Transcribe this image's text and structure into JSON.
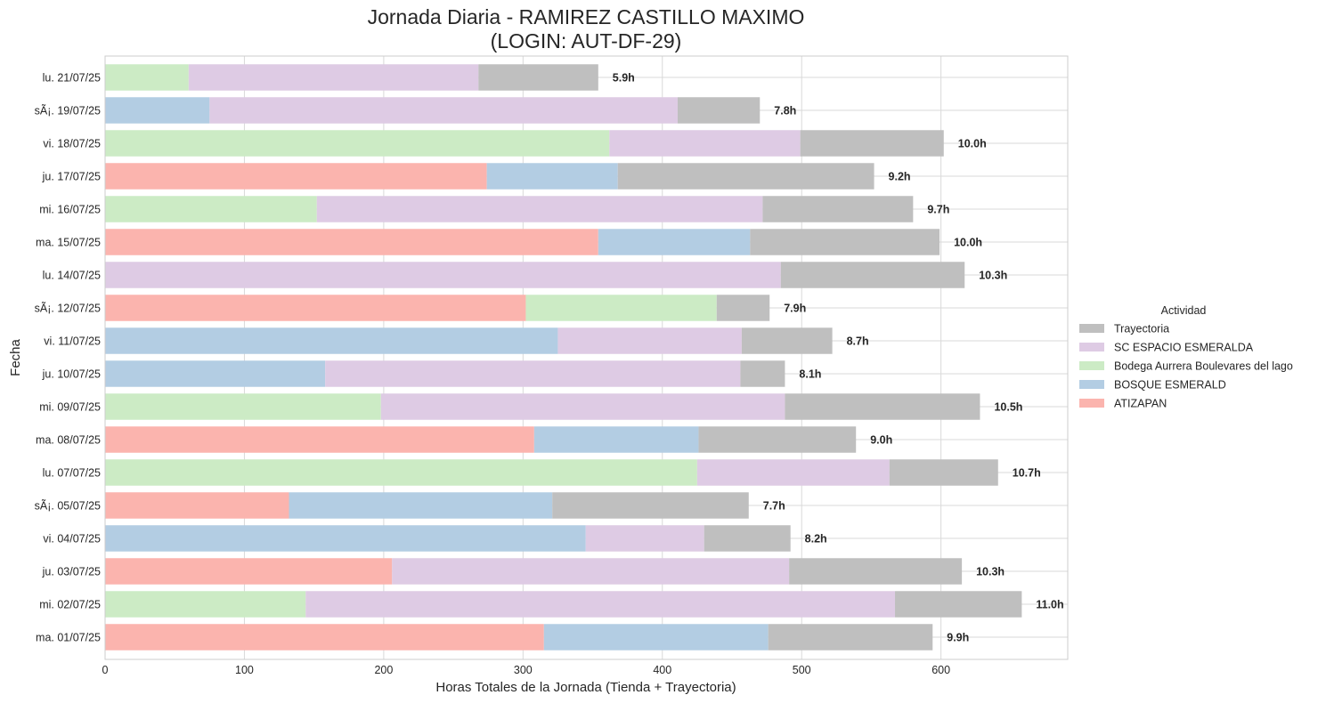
{
  "chart_data": {
    "type": "bar",
    "orientation": "horizontal",
    "stacked": true,
    "title": "Jornada Diaria - RAMIREZ CASTILLO MAXIMO",
    "subtitle": "(LOGIN: AUT-DF-29)",
    "xlabel": "Horas Totales de la Jornada (Tienda + Trayectoria)",
    "ylabel": "Fecha",
    "xlim": [
      0,
      691
    ],
    "xticks": [
      0,
      100,
      200,
      300,
      400,
      500,
      600
    ],
    "grid": true,
    "legend_title": "Actividad",
    "legend_position": "right",
    "categories": [
      "lu. 21/07/25",
      "sÃ¡. 19/07/25",
      "vi. 18/07/25",
      "ju. 17/07/25",
      "mi. 16/07/25",
      "ma. 15/07/25",
      "lu. 14/07/25",
      "sÃ¡. 12/07/25",
      "vi. 11/07/25",
      "ju. 10/07/25",
      "mi. 09/07/25",
      "ma. 08/07/25",
      "lu. 07/07/25",
      "sÃ¡. 05/07/25",
      "vi. 04/07/25",
      "ju. 03/07/25",
      "mi. 02/07/25",
      "ma. 01/07/25"
    ],
    "totals_labels": [
      "5.9h",
      "7.8h",
      "10.0h",
      "9.2h",
      "9.7h",
      "10.0h",
      "10.3h",
      "7.9h",
      "8.7h",
      "8.1h",
      "10.5h",
      "9.0h",
      "10.7h",
      "7.7h",
      "8.2h",
      "10.3h",
      "11.0h",
      "9.9h"
    ],
    "series": [
      {
        "name": "ATIZAPAN",
        "color": "#fbb4ae",
        "values": [
          0,
          0,
          0,
          274,
          0,
          354,
          0,
          302,
          0,
          0,
          0,
          308,
          0,
          132,
          0,
          206,
          0,
          315
        ]
      },
      {
        "name": "BOSQUE ESMERALD",
        "color": "#b3cde3",
        "values": [
          0,
          75,
          0,
          94,
          0,
          109,
          0,
          0,
          325,
          158,
          0,
          118,
          0,
          189,
          345,
          0,
          0,
          161
        ]
      },
      {
        "name": "Bodega Aurrera Boulevares del lago",
        "color": "#ccebc5",
        "values": [
          60,
          0,
          362,
          0,
          152,
          0,
          0,
          137,
          0,
          0,
          198,
          0,
          425,
          0,
          0,
          0,
          144,
          0
        ]
      },
      {
        "name": "SC ESPACIO ESMERALDA",
        "color": "#decbe4",
        "values": [
          208,
          336,
          137,
          0,
          320,
          0,
          485,
          0,
          132,
          298,
          290,
          0,
          138,
          0,
          85,
          285,
          423,
          0
        ]
      },
      {
        "name": "Trayectoria",
        "color": "#bfbfbf",
        "values": [
          86,
          59,
          103,
          184,
          108,
          136,
          132,
          38,
          65,
          32,
          140,
          113,
          78,
          141,
          62,
          124,
          91,
          118
        ]
      }
    ],
    "legend_order": [
      "Trayectoria",
      "SC ESPACIO ESMERALDA",
      "Bodega Aurrera Boulevares del lago",
      "BOSQUE ESMERALD",
      "ATIZAPAN"
    ]
  }
}
